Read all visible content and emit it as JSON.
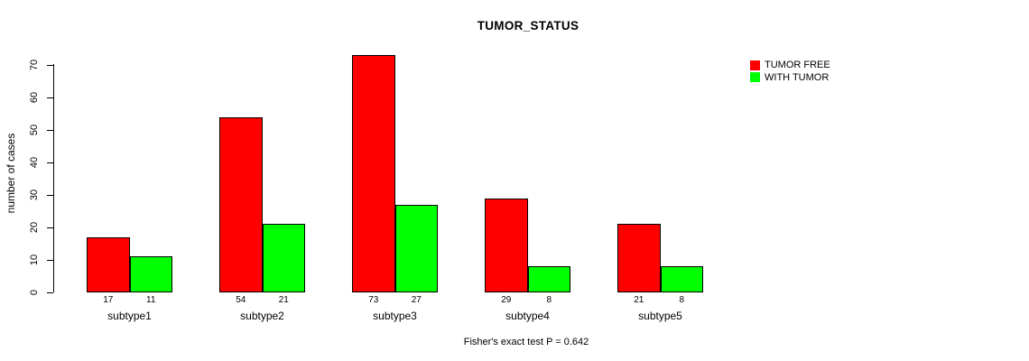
{
  "chart_data": {
    "type": "bar",
    "title": "TUMOR_STATUS",
    "categories": [
      "subtype1",
      "subtype2",
      "subtype3",
      "subtype4",
      "subtype5"
    ],
    "series": [
      {
        "name": "TUMOR FREE",
        "color": "#FF0000",
        "values": [
          17,
          54,
          73,
          29,
          21
        ]
      },
      {
        "name": "WITH TUMOR",
        "color": "#00FF00",
        "values": [
          11,
          21,
          27,
          8,
          8
        ]
      }
    ],
    "xlabel": "",
    "ylabel": "number of cases",
    "yticks": [
      0,
      10,
      20,
      30,
      40,
      50,
      60,
      70
    ],
    "ylim": [
      0,
      75
    ],
    "grid": false,
    "bar_value_labels": true,
    "legend_position": "top-right",
    "annotation": "Fisher's exact test P = 0.642",
    "colors": {
      "tumor_free": "#FF0000",
      "with_tumor": "#00FF00",
      "axis": "#000000",
      "background": "#FFFFFF"
    }
  }
}
